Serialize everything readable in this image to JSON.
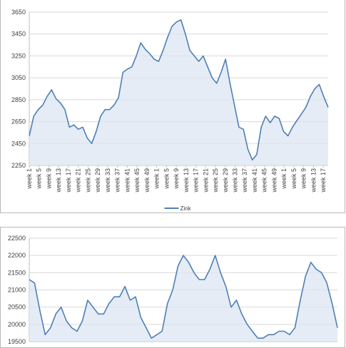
{
  "colors": {
    "line": "#4f7fb6",
    "fill": "#dce6f1",
    "grid": "#d9d9d9",
    "axis": "#bfbfbf"
  },
  "chart_data": [
    {
      "type": "area",
      "title": "",
      "xlabel": "",
      "ylabel": "",
      "ylim": [
        2250,
        3650
      ],
      "yticks": [
        2250,
        2450,
        2650,
        2850,
        3050,
        3250,
        3450,
        3650
      ],
      "grid": true,
      "legend": "bottom",
      "x_tick_labels": [
        "week 1",
        "week 5",
        "week 9",
        "week 13",
        "week 17",
        "week 21",
        "week 25",
        "week 29",
        "week 33",
        "week 37",
        "week 41",
        "week 45",
        "week 49",
        "week 1",
        "week 5",
        "week 9",
        "week 13",
        "week 17",
        "week 21",
        "week 25",
        "week 29",
        "week 33",
        "week 37",
        "week 41",
        "week 45",
        "week 49",
        "week 1",
        "week 5",
        "week 9",
        "week 13",
        "week 17"
      ],
      "series": [
        {
          "name": "Zink",
          "values": [
            2520,
            2700,
            2760,
            2800,
            2880,
            2940,
            2860,
            2820,
            2760,
            2600,
            2620,
            2580,
            2600,
            2500,
            2450,
            2560,
            2700,
            2760,
            2760,
            2800,
            2870,
            3100,
            3130,
            3150,
            3250,
            3370,
            3310,
            3270,
            3220,
            3200,
            3300,
            3420,
            3520,
            3560,
            3580,
            3450,
            3300,
            3250,
            3200,
            3250,
            3150,
            3050,
            3000,
            3100,
            3220,
            3000,
            2800,
            2600,
            2580,
            2400,
            2300,
            2350,
            2600,
            2700,
            2640,
            2700,
            2680,
            2560,
            2520,
            2600,
            2660,
            2720,
            2780,
            2880,
            2950,
            2990,
            2880,
            2780
          ]
        }
      ]
    },
    {
      "type": "area",
      "title": "",
      "xlabel": "",
      "ylabel": "",
      "ylim": [
        19500,
        22500
      ],
      "yticks": [
        19500,
        20000,
        20500,
        21000,
        21500,
        22000,
        22500
      ],
      "grid": true,
      "series": [
        {
          "name": "",
          "values": [
            21300,
            21200,
            20400,
            19700,
            19900,
            20300,
            20500,
            20100,
            19900,
            19800,
            20100,
            20700,
            20500,
            20300,
            20300,
            20600,
            20800,
            20800,
            21100,
            20700,
            20800,
            20200,
            19900,
            19600,
            19700,
            19800,
            20600,
            21000,
            21700,
            22000,
            21800,
            21500,
            21300,
            21300,
            21600,
            22000,
            21500,
            21100,
            20500,
            20700,
            20300,
            20000,
            19800,
            19600,
            19600,
            19700,
            19700,
            19800,
            19800,
            19700,
            19900,
            20700,
            21400,
            21800,
            21600,
            21500,
            21200,
            20600,
            19900
          ]
        }
      ]
    }
  ]
}
